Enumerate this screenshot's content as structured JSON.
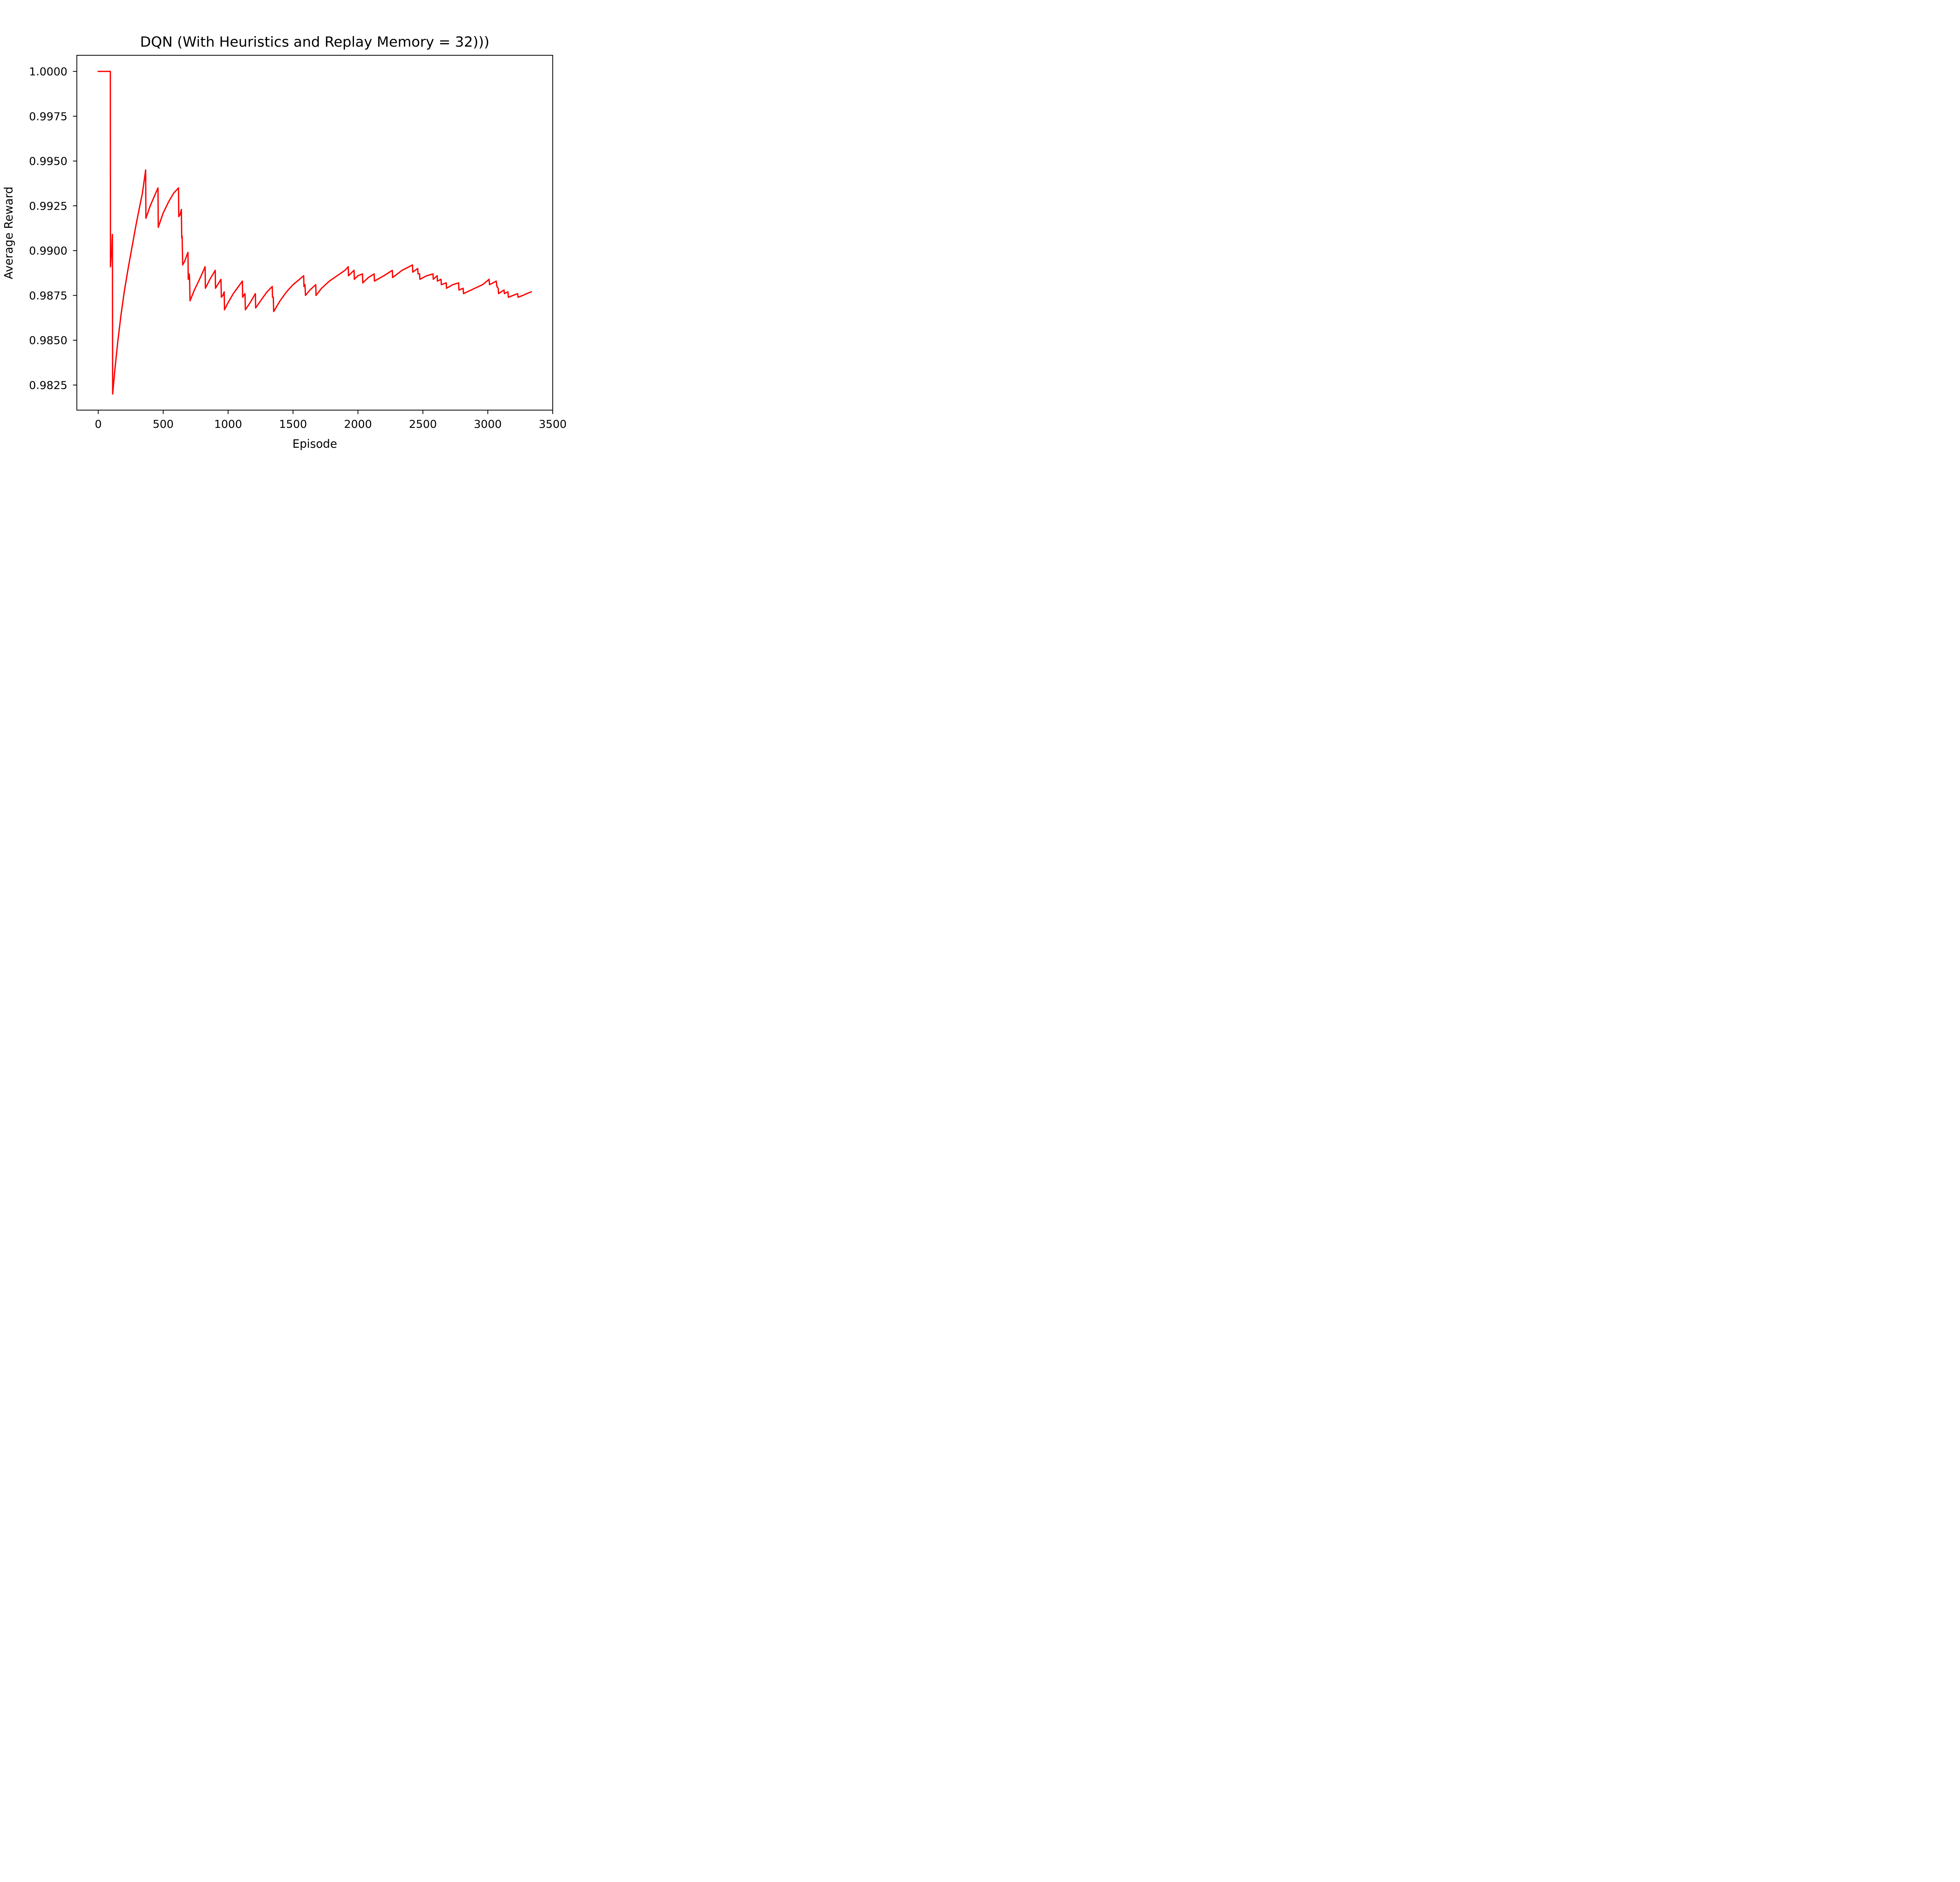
{
  "chart_data": {
    "type": "line",
    "title": "DQN (With Heuristics and Replay Memory = 32)))",
    "xlabel": "Episode",
    "ylabel": "Average Reward",
    "xlim": [
      -165,
      3500
    ],
    "ylim": [
      0.9811,
      1.0009
    ],
    "xticks": [
      0,
      500,
      1000,
      1500,
      2000,
      2500,
      3000,
      3500
    ],
    "xtick_labels": [
      "0",
      "500",
      "1000",
      "1500",
      "2000",
      "2500",
      "3000",
      "3500"
    ],
    "yticks": [
      0.9825,
      0.985,
      0.9875,
      0.99,
      0.9925,
      0.995,
      0.9975,
      1.0
    ],
    "ytick_labels": [
      "0.9825",
      "0.9850",
      "0.9875",
      "0.9900",
      "0.9925",
      "0.9950",
      "0.9975",
      "1.0000"
    ],
    "grid": false,
    "line_color": "#ff0000",
    "series": [
      {
        "points": [
          [
            0,
            1.0
          ],
          [
            93,
            1.0
          ],
          [
            94,
            0.9891
          ],
          [
            98,
            0.9896
          ],
          [
            104,
            0.99
          ],
          [
            106,
            0.9905
          ],
          [
            109,
            0.9909
          ],
          [
            111,
            0.982
          ],
          [
            130,
            0.9835
          ],
          [
            150,
            0.9849
          ],
          [
            175,
            0.9864
          ],
          [
            200,
            0.9877
          ],
          [
            230,
            0.989
          ],
          [
            260,
            0.9902
          ],
          [
            290,
            0.9914
          ],
          [
            320,
            0.9925
          ],
          [
            340,
            0.9932
          ],
          [
            365,
            0.9945
          ],
          [
            367,
            0.9918
          ],
          [
            400,
            0.9925
          ],
          [
            430,
            0.993
          ],
          [
            460,
            0.9935
          ],
          [
            462,
            0.9913
          ],
          [
            500,
            0.9921
          ],
          [
            540,
            0.9927
          ],
          [
            580,
            0.9932
          ],
          [
            618,
            0.9935
          ],
          [
            620,
            0.9919
          ],
          [
            630,
            0.992
          ],
          [
            640,
            0.9923
          ],
          [
            643,
            0.9907
          ],
          [
            646,
            0.9908
          ],
          [
            650,
            0.9892
          ],
          [
            665,
            0.9894
          ],
          [
            680,
            0.9897
          ],
          [
            691,
            0.9899
          ],
          [
            693,
            0.9884
          ],
          [
            698,
            0.9885
          ],
          [
            700,
            0.9887
          ],
          [
            703,
            0.9885
          ],
          [
            707,
            0.9872
          ],
          [
            740,
            0.9878
          ],
          [
            780,
            0.9884
          ],
          [
            823,
            0.9891
          ],
          [
            825,
            0.9879
          ],
          [
            860,
            0.9884
          ],
          [
            901,
            0.9889
          ],
          [
            903,
            0.9879
          ],
          [
            920,
            0.9881
          ],
          [
            945,
            0.9884
          ],
          [
            948,
            0.9874
          ],
          [
            960,
            0.9875
          ],
          [
            970,
            0.9877
          ],
          [
            972,
            0.9867
          ],
          [
            1000,
            0.9871
          ],
          [
            1040,
            0.9876
          ],
          [
            1080,
            0.988
          ],
          [
            1110,
            0.9883
          ],
          [
            1112,
            0.9874
          ],
          [
            1120,
            0.9875
          ],
          [
            1130,
            0.9876
          ],
          [
            1133,
            0.9867
          ],
          [
            1170,
            0.9871
          ],
          [
            1210,
            0.9876
          ],
          [
            1212,
            0.9868
          ],
          [
            1260,
            0.9873
          ],
          [
            1300,
            0.9877
          ],
          [
            1340,
            0.988
          ],
          [
            1342,
            0.9874
          ],
          [
            1348,
            0.9874
          ],
          [
            1351,
            0.9866
          ],
          [
            1400,
            0.9872
          ],
          [
            1450,
            0.9877
          ],
          [
            1500,
            0.9881
          ],
          [
            1550,
            0.9884
          ],
          [
            1582,
            0.9886
          ],
          [
            1584,
            0.988
          ],
          [
            1588,
            0.988
          ],
          [
            1592,
            0.9881
          ],
          [
            1596,
            0.9875
          ],
          [
            1630,
            0.9878
          ],
          [
            1675,
            0.9881
          ],
          [
            1677,
            0.9875
          ],
          [
            1720,
            0.9879
          ],
          [
            1780,
            0.9883
          ],
          [
            1840,
            0.9886
          ],
          [
            1900,
            0.9889
          ],
          [
            1925,
            0.9891
          ],
          [
            1927,
            0.9886
          ],
          [
            1970,
            0.9889
          ],
          [
            1972,
            0.9884
          ],
          [
            2000,
            0.9886
          ],
          [
            2035,
            0.9887
          ],
          [
            2037,
            0.9882
          ],
          [
            2080,
            0.9885
          ],
          [
            2125,
            0.9887
          ],
          [
            2127,
            0.9883
          ],
          [
            2200,
            0.9886
          ],
          [
            2265,
            0.9889
          ],
          [
            2267,
            0.9885
          ],
          [
            2340,
            0.9889
          ],
          [
            2420,
            0.9892
          ],
          [
            2422,
            0.9888
          ],
          [
            2460,
            0.989
          ],
          [
            2463,
            0.9887
          ],
          [
            2475,
            0.9887
          ],
          [
            2477,
            0.9884
          ],
          [
            2530,
            0.9886
          ],
          [
            2578,
            0.9887
          ],
          [
            2580,
            0.9884
          ],
          [
            2610,
            0.9886
          ],
          [
            2612,
            0.9883
          ],
          [
            2640,
            0.9884
          ],
          [
            2642,
            0.9881
          ],
          [
            2680,
            0.9882
          ],
          [
            2682,
            0.9879
          ],
          [
            2730,
            0.9881
          ],
          [
            2775,
            0.9882
          ],
          [
            2778,
            0.9878
          ],
          [
            2810,
            0.9879
          ],
          [
            2813,
            0.9876
          ],
          [
            2900,
            0.9879
          ],
          [
            2960,
            0.9881
          ],
          [
            3010,
            0.9884
          ],
          [
            3013,
            0.9881
          ],
          [
            3065,
            0.9883
          ],
          [
            3070,
            0.988
          ],
          [
            3080,
            0.9879
          ],
          [
            3083,
            0.9876
          ],
          [
            3125,
            0.9878
          ],
          [
            3128,
            0.9876
          ],
          [
            3155,
            0.9877
          ],
          [
            3158,
            0.9874
          ],
          [
            3195,
            0.9875
          ],
          [
            3230,
            0.9876
          ],
          [
            3233,
            0.9874
          ],
          [
            3270,
            0.9875
          ],
          [
            3300,
            0.9876
          ],
          [
            3335,
            0.9877
          ]
        ]
      }
    ]
  }
}
